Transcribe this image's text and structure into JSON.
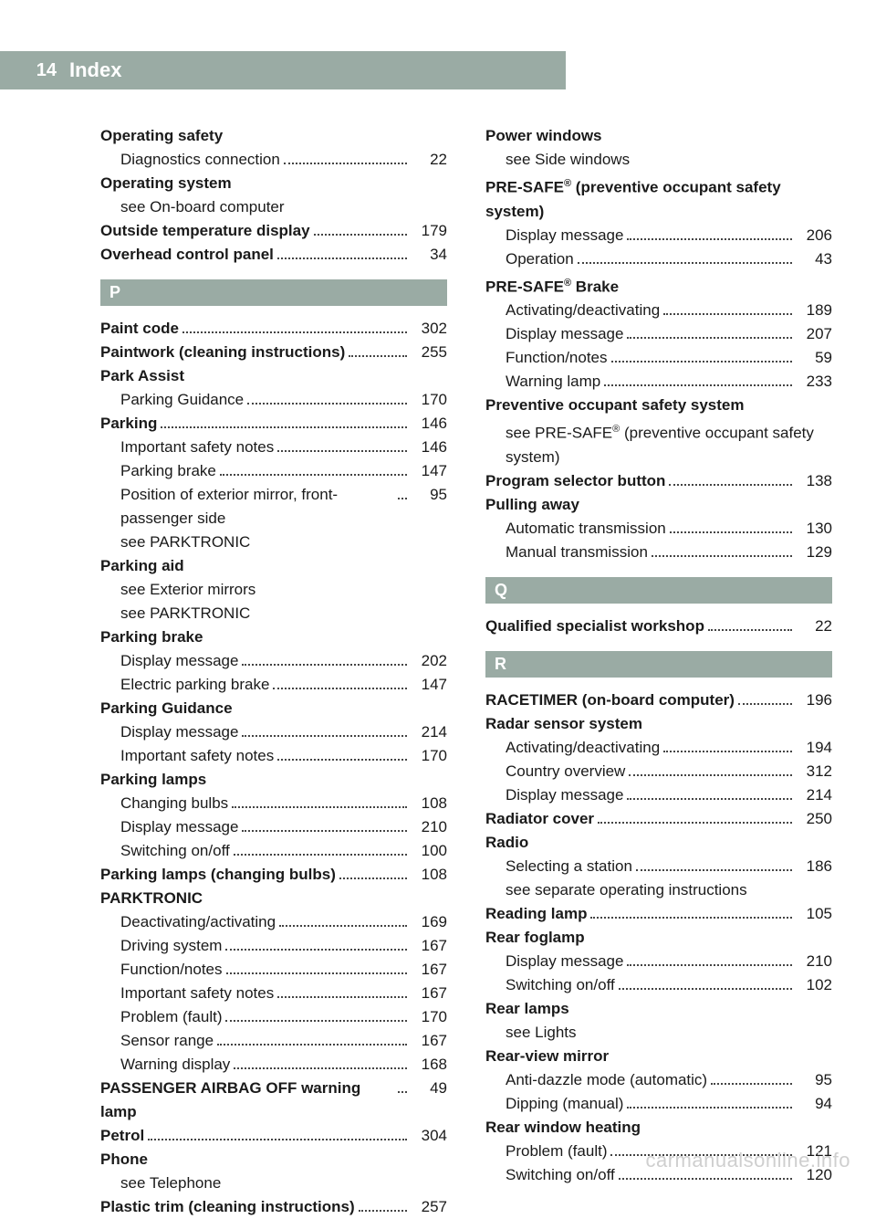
{
  "header": {
    "page_number": "14",
    "title": "Index"
  },
  "watermark": "carmanualsonline.info",
  "columns": [
    {
      "blocks": [
        {
          "type": "entries",
          "items": [
            {
              "bold": true,
              "label": "Operating safety"
            },
            {
              "sub": true,
              "label": "Diagnostics connection",
              "page": "22"
            },
            {
              "bold": true,
              "label": "Operating system"
            },
            {
              "sub": true,
              "label": "see On-board computer"
            },
            {
              "bold": true,
              "label": "Outside temperature display",
              "page": "179"
            },
            {
              "bold": true,
              "label": "Overhead control panel",
              "page": "34"
            }
          ]
        },
        {
          "type": "letter",
          "value": "P"
        },
        {
          "type": "entries",
          "items": [
            {
              "bold": true,
              "label": "Paint code",
              "page": "302"
            },
            {
              "bold": true,
              "label": "Paintwork (cleaning instructions)",
              "page": "255"
            },
            {
              "bold": true,
              "label": "Park Assist"
            },
            {
              "sub": true,
              "label": "Parking Guidance",
              "page": "170"
            },
            {
              "bold": true,
              "label": "Parking",
              "page": "146"
            },
            {
              "sub": true,
              "label": "Important safety notes",
              "page": "146"
            },
            {
              "sub": true,
              "label": "Parking brake",
              "page": "147"
            },
            {
              "sub": true,
              "label": "Position of exterior mirror, front-passenger side",
              "page": "95"
            },
            {
              "sub": true,
              "label": "see PARKTRONIC"
            },
            {
              "bold": true,
              "label": "Parking aid"
            },
            {
              "sub": true,
              "label": "see Exterior mirrors"
            },
            {
              "sub": true,
              "label": "see PARKTRONIC"
            },
            {
              "bold": true,
              "label": "Parking brake"
            },
            {
              "sub": true,
              "label": "Display message",
              "page": "202"
            },
            {
              "sub": true,
              "label": "Electric parking brake",
              "page": "147"
            },
            {
              "bold": true,
              "label": "Parking Guidance"
            },
            {
              "sub": true,
              "label": "Display message",
              "page": "214"
            },
            {
              "sub": true,
              "label": "Important safety notes",
              "page": "170"
            },
            {
              "bold": true,
              "label": "Parking lamps"
            },
            {
              "sub": true,
              "label": "Changing bulbs",
              "page": "108"
            },
            {
              "sub": true,
              "label": "Display message",
              "page": "210"
            },
            {
              "sub": true,
              "label": "Switching on/off",
              "page": "100"
            },
            {
              "bold": true,
              "label": "Parking lamps (changing bulbs)",
              "page": "108"
            },
            {
              "bold": true,
              "label": "PARKTRONIC"
            },
            {
              "sub": true,
              "label": "Deactivating/activating",
              "page": "169"
            },
            {
              "sub": true,
              "label": "Driving system",
              "page": "167"
            },
            {
              "sub": true,
              "label": "Function/notes",
              "page": "167"
            },
            {
              "sub": true,
              "label": "Important safety notes",
              "page": "167"
            },
            {
              "sub": true,
              "label": "Problem (fault)",
              "page": "170"
            },
            {
              "sub": true,
              "label": "Sensor range",
              "page": "167"
            },
            {
              "sub": true,
              "label": "Warning display",
              "page": "168"
            },
            {
              "bold": true,
              "label": "PASSENGER AIRBAG OFF warning lamp",
              "page": "49"
            },
            {
              "bold": true,
              "label": "Petrol",
              "page": "304"
            },
            {
              "bold": true,
              "label": "Phone"
            },
            {
              "sub": true,
              "label": "see Telephone"
            },
            {
              "bold": true,
              "label": "Plastic trim (cleaning instructions)",
              "page": "257"
            }
          ]
        }
      ]
    },
    {
      "blocks": [
        {
          "type": "entries",
          "items": [
            {
              "bold": true,
              "label": "Power windows"
            },
            {
              "sub": true,
              "label": "see Side windows"
            },
            {
              "bold": true,
              "label_html": "PRE-SAFE<sup>®</sup> (preventive occupant safety system)"
            },
            {
              "sub": true,
              "label": "Display message",
              "page": "206"
            },
            {
              "sub": true,
              "label": "Operation",
              "page": "43"
            },
            {
              "bold": true,
              "label_html": "PRE-SAFE<sup>®</sup> Brake"
            },
            {
              "sub": true,
              "label": "Activating/deactivating",
              "page": "189"
            },
            {
              "sub": true,
              "label": "Display message",
              "page": "207"
            },
            {
              "sub": true,
              "label": "Function/notes",
              "page": "59"
            },
            {
              "sub": true,
              "label": "Warning lamp",
              "page": "233"
            },
            {
              "bold": true,
              "label": "Preventive occupant safety system"
            },
            {
              "sub": true,
              "label_html": "see PRE-SAFE<sup>®</sup> (preventive occupant safety system)"
            },
            {
              "bold": true,
              "label": "Program selector button",
              "page": "138"
            },
            {
              "bold": true,
              "label": "Pulling away"
            },
            {
              "sub": true,
              "label": "Automatic transmission",
              "page": "130"
            },
            {
              "sub": true,
              "label": "Manual transmission",
              "page": "129"
            }
          ]
        },
        {
          "type": "letter",
          "value": "Q"
        },
        {
          "type": "entries",
          "items": [
            {
              "bold": true,
              "label": "Qualified specialist workshop",
              "page": "22"
            }
          ]
        },
        {
          "type": "letter",
          "value": "R"
        },
        {
          "type": "entries",
          "items": [
            {
              "bold": true,
              "label": "RACETIMER (on-board computer)",
              "page": "196"
            },
            {
              "bold": true,
              "label": "Radar sensor system"
            },
            {
              "sub": true,
              "label": "Activating/deactivating",
              "page": "194"
            },
            {
              "sub": true,
              "label": "Country overview",
              "page": "312"
            },
            {
              "sub": true,
              "label": "Display message",
              "page": "214"
            },
            {
              "bold": true,
              "label": "Radiator cover",
              "page": "250"
            },
            {
              "bold": true,
              "label": "Radio"
            },
            {
              "sub": true,
              "label": "Selecting a station",
              "page": "186"
            },
            {
              "sub": true,
              "label": "see separate operating instructions"
            },
            {
              "bold": true,
              "label": "Reading lamp",
              "page": "105"
            },
            {
              "bold": true,
              "label": "Rear foglamp"
            },
            {
              "sub": true,
              "label": "Display message",
              "page": "210"
            },
            {
              "sub": true,
              "label": "Switching on/off",
              "page": "102"
            },
            {
              "bold": true,
              "label": "Rear lamps"
            },
            {
              "sub": true,
              "label": "see Lights"
            },
            {
              "bold": true,
              "label": "Rear-view mirror"
            },
            {
              "sub": true,
              "label": "Anti-dazzle mode (automatic)",
              "page": "95"
            },
            {
              "sub": true,
              "label": "Dipping (manual)",
              "page": "94"
            },
            {
              "bold": true,
              "label": "Rear window heating"
            },
            {
              "sub": true,
              "label": "Problem (fault)",
              "page": "121"
            },
            {
              "sub": true,
              "label": "Switching on/off",
              "page": "120"
            }
          ]
        }
      ]
    }
  ]
}
